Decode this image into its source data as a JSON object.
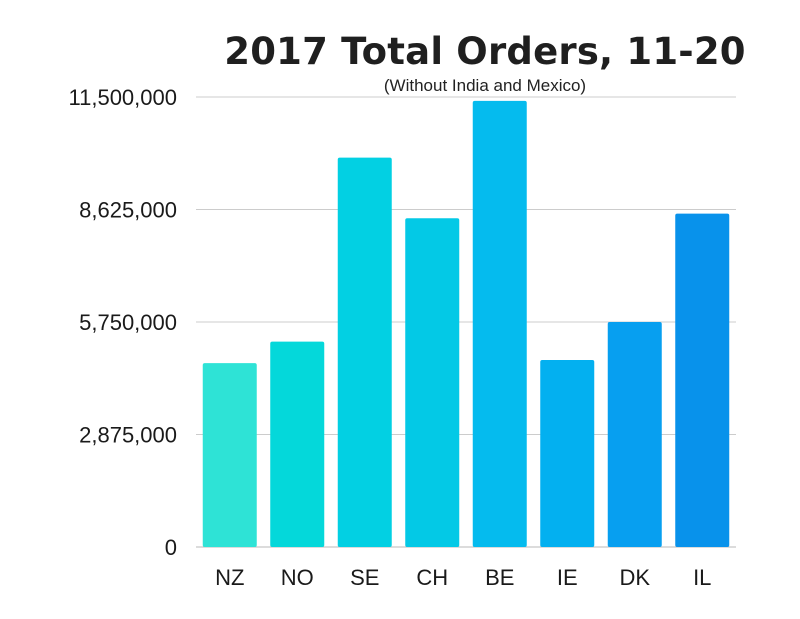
{
  "chart_data": {
    "type": "bar",
    "title": "2017 Total Orders, 11-20",
    "subtitle": "(Without India and Mexico)",
    "xlabel": "",
    "ylabel": "",
    "categories": [
      "NZ",
      "NO",
      "SE",
      "CH",
      "BE",
      "IE",
      "DK",
      "IL"
    ],
    "values": [
      4700000,
      5250000,
      9950000,
      8400000,
      11400000,
      4780000,
      5750000,
      8520000
    ],
    "ylim": [
      0,
      11500000
    ],
    "yticks": [
      0,
      2875000,
      5750000,
      8625000,
      11500000
    ],
    "ytick_labels": [
      "0",
      "2,875,000",
      "5,750,000",
      "8,625,000",
      "11,500,000"
    ],
    "grid": true,
    "legend": "none",
    "colors": [
      "#2ee3d6",
      "#04d8da",
      "#02d0e3",
      "#03c9e6",
      "#05bbee",
      "#03b0f0",
      "#079ff0",
      "#0892eb"
    ]
  }
}
